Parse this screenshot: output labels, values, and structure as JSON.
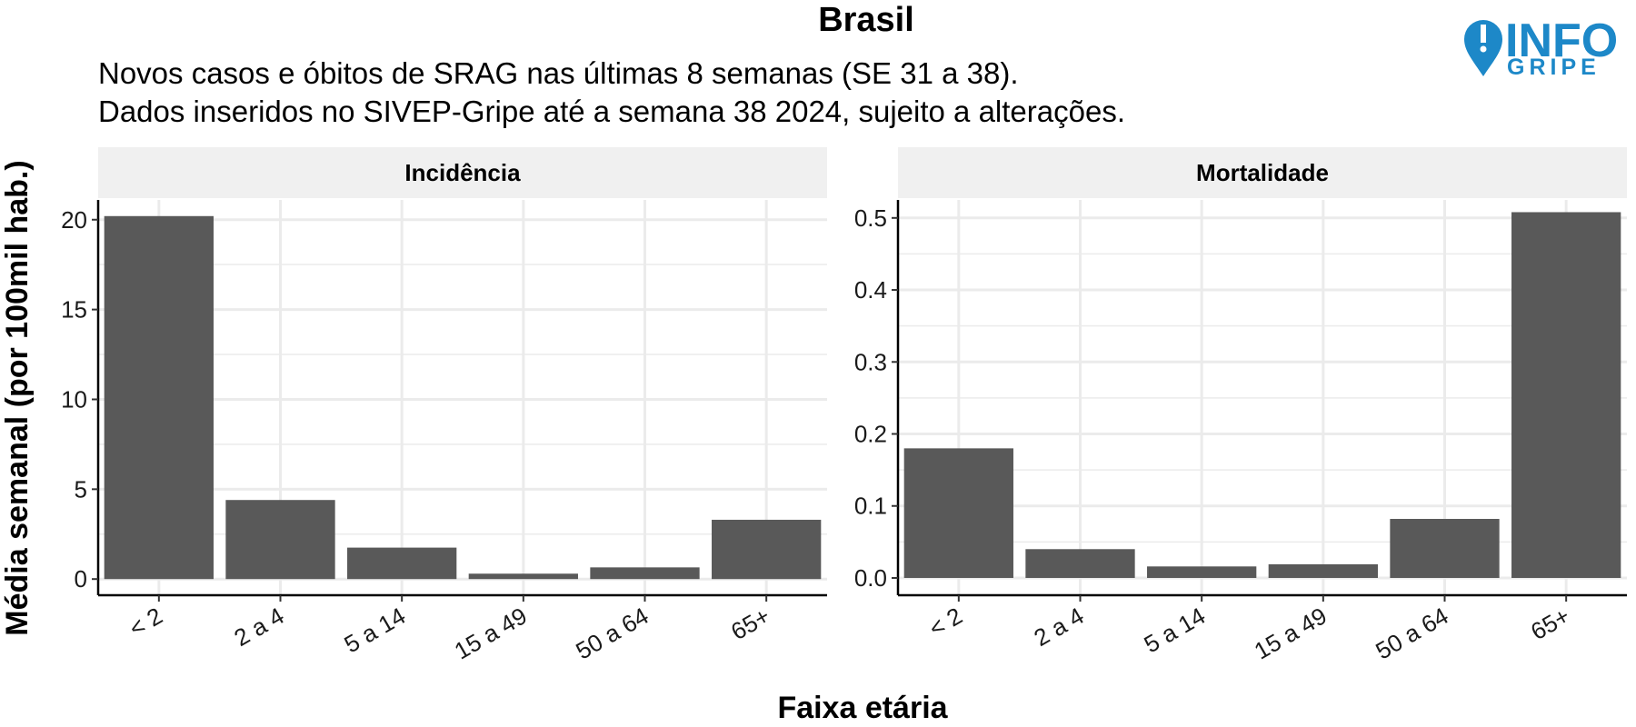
{
  "header": {
    "title": "Brasil",
    "subtitle_line1": "Novos casos e óbitos de SRAG nas últimas 8 semanas (SE 31 a 38).",
    "subtitle_line2": "Dados inseridos no SIVEP-Gripe até a semana 38 2024, sujeito a alterações."
  },
  "logo": {
    "line1": "INFO",
    "line2": "GRIPE",
    "color": "#1d88c8",
    "icon": "map-pin-icon"
  },
  "colors": {
    "bar": "#595959",
    "strip": "#f0f0f0",
    "grid": "#ebebeb",
    "axis": "#000000"
  },
  "chart_data": [
    {
      "type": "bar",
      "panel": "Incidência",
      "categories": [
        "< 2",
        "2 a 4",
        "5 a 14",
        "15 a 49",
        "50 a 64",
        "65+"
      ],
      "values": [
        20.2,
        4.4,
        1.75,
        0.3,
        0.65,
        3.3
      ],
      "ylim": [
        -0.9,
        21.1
      ],
      "yticks": [
        0,
        5,
        10,
        15,
        20
      ],
      "ytick_labels": [
        "0",
        "5",
        "10",
        "15",
        "20"
      ]
    },
    {
      "type": "bar",
      "panel": "Mortalidade",
      "categories": [
        "< 2",
        "2 a 4",
        "5 a 14",
        "15 a 49",
        "50 a 64",
        "65+"
      ],
      "values": [
        0.18,
        0.04,
        0.016,
        0.019,
        0.082,
        0.508
      ],
      "ylim": [
        -0.024,
        0.525
      ],
      "yticks": [
        0.0,
        0.1,
        0.2,
        0.3,
        0.4,
        0.5
      ],
      "ytick_labels": [
        "0.0",
        "0.1",
        "0.2",
        "0.3",
        "0.4",
        "0.5"
      ]
    }
  ],
  "axes": {
    "xlabel": "Faixa etária",
    "ylabel": "Média semanal (por 100mil hab.)"
  }
}
